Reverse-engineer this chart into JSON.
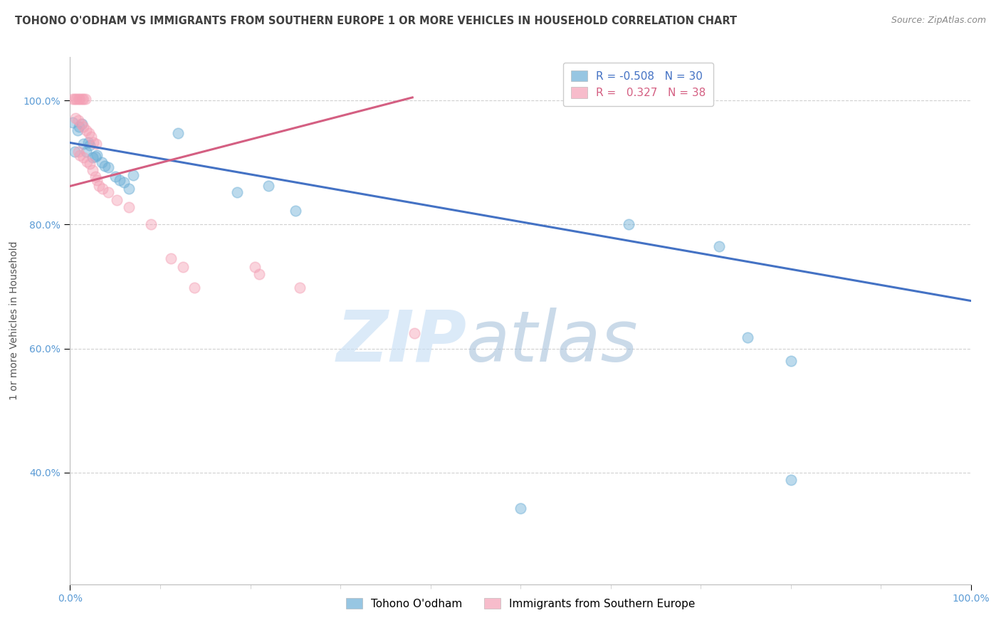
{
  "title": "TOHONO O'ODHAM VS IMMIGRANTS FROM SOUTHERN EUROPE 1 OR MORE VEHICLES IN HOUSEHOLD CORRELATION CHART",
  "source": "Source: ZipAtlas.com",
  "ylabel": "1 or more Vehicles in Household",
  "watermark_zip": "ZIP",
  "watermark_atlas": "atlas",
  "legend_blue_R": "-0.508",
  "legend_blue_N": "30",
  "legend_pink_R": "0.327",
  "legend_pink_N": "38",
  "legend_blue_label": "Tohono O'odham",
  "legend_pink_label": "Immigrants from Southern Europe",
  "xlim": [
    0.0,
    1.0
  ],
  "ylim": [
    0.22,
    1.07
  ],
  "blue_color": "#6baed6",
  "pink_color": "#f4a0b5",
  "blue_line_color": "#4472c4",
  "pink_line_color": "#d45f82",
  "blue_line_x0": 0.0,
  "blue_line_y0": 0.932,
  "blue_line_x1": 1.0,
  "blue_line_y1": 0.677,
  "pink_line_x0": 0.0,
  "pink_line_y0": 0.862,
  "pink_line_x1": 0.38,
  "pink_line_y1": 1.005,
  "blue_scatter": [
    [
      0.003,
      0.965
    ],
    [
      0.008,
      0.952
    ],
    [
      0.005,
      0.918
    ],
    [
      0.01,
      0.958
    ],
    [
      0.013,
      0.962
    ],
    [
      0.015,
      0.93
    ],
    [
      0.018,
      0.918
    ],
    [
      0.02,
      0.932
    ],
    [
      0.022,
      0.928
    ],
    [
      0.025,
      0.908
    ],
    [
      0.028,
      0.91
    ],
    [
      0.03,
      0.912
    ],
    [
      0.035,
      0.9
    ],
    [
      0.038,
      0.895
    ],
    [
      0.042,
      0.892
    ],
    [
      0.05,
      0.878
    ],
    [
      0.055,
      0.872
    ],
    [
      0.06,
      0.868
    ],
    [
      0.065,
      0.858
    ],
    [
      0.07,
      0.88
    ],
    [
      0.12,
      0.948
    ],
    [
      0.185,
      0.852
    ],
    [
      0.22,
      0.862
    ],
    [
      0.25,
      0.822
    ],
    [
      0.5,
      0.342
    ],
    [
      0.62,
      0.8
    ],
    [
      0.72,
      0.765
    ],
    [
      0.752,
      0.618
    ],
    [
      0.8,
      0.58
    ],
    [
      0.8,
      0.388
    ]
  ],
  "pink_scatter": [
    [
      0.003,
      1.003
    ],
    [
      0.005,
      1.003
    ],
    [
      0.007,
      1.003
    ],
    [
      0.009,
      1.003
    ],
    [
      0.011,
      1.003
    ],
    [
      0.013,
      1.003
    ],
    [
      0.015,
      1.003
    ],
    [
      0.017,
      1.003
    ],
    [
      0.006,
      0.972
    ],
    [
      0.009,
      0.968
    ],
    [
      0.012,
      0.962
    ],
    [
      0.015,
      0.958
    ],
    [
      0.018,
      0.952
    ],
    [
      0.021,
      0.948
    ],
    [
      0.023,
      0.942
    ],
    [
      0.026,
      0.932
    ],
    [
      0.029,
      0.93
    ],
    [
      0.009,
      0.918
    ],
    [
      0.011,
      0.912
    ],
    [
      0.015,
      0.908
    ],
    [
      0.019,
      0.902
    ],
    [
      0.022,
      0.898
    ],
    [
      0.025,
      0.888
    ],
    [
      0.028,
      0.878
    ],
    [
      0.03,
      0.872
    ],
    [
      0.032,
      0.862
    ],
    [
      0.036,
      0.858
    ],
    [
      0.042,
      0.852
    ],
    [
      0.052,
      0.84
    ],
    [
      0.065,
      0.828
    ],
    [
      0.09,
      0.8
    ],
    [
      0.112,
      0.745
    ],
    [
      0.125,
      0.732
    ],
    [
      0.138,
      0.698
    ],
    [
      0.205,
      0.732
    ],
    [
      0.255,
      0.698
    ],
    [
      0.382,
      0.625
    ],
    [
      0.21,
      0.72
    ]
  ],
  "xticklabels": [
    "0.0%",
    "100.0%"
  ],
  "yticklabels": [
    "100.0%",
    "80.0%",
    "60.0%",
    "40.0%"
  ],
  "ytick_positions": [
    1.0,
    0.8,
    0.6,
    0.4
  ],
  "grid_color": "#d0d0d0",
  "background_color": "#ffffff",
  "title_fontsize": 10.5,
  "source_fontsize": 9,
  "axis_label_fontsize": 10,
  "tick_fontsize": 10,
  "marker_size": 110,
  "marker_alpha": 0.45,
  "blue_R_color": "#4472c4",
  "pink_R_color": "#d45f82"
}
